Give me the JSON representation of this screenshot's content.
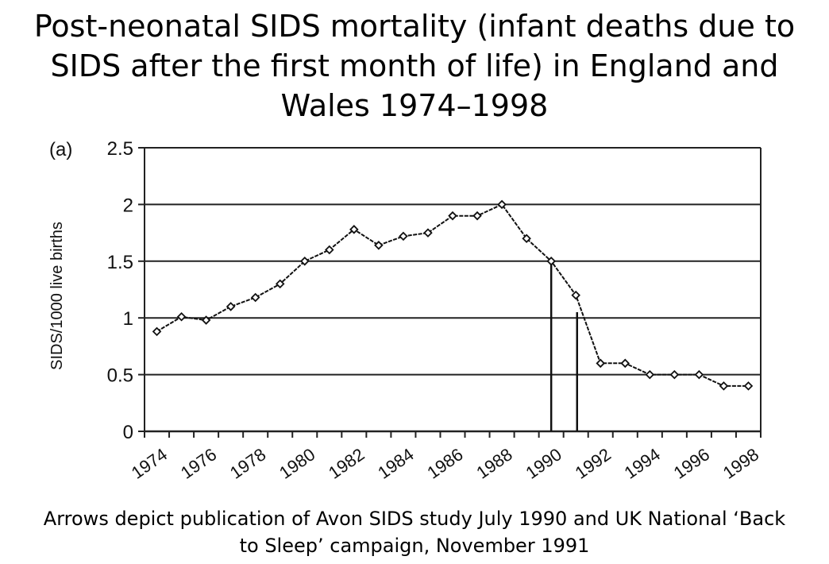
{
  "title_lines": [
    "Post-neonatal SIDS mortality (infant deaths due to",
    "SIDS after the first month of life) in England and",
    "Wales 1974–1998"
  ],
  "caption_lines": [
    "Arrows depict publication of Avon SIDS study July 1990 and UK National ‘Back",
    "to Sleep’ campaign, November 1991"
  ],
  "chart_data": {
    "type": "line",
    "title": "Post-neonatal SIDS mortality (infant deaths due to SIDS after the first month of life) in England and Wales 1974–1998",
    "panel_label": "(a)",
    "xlabel": "",
    "ylabel": "SIDS/1000 live births",
    "x": [
      1974.5,
      1975.5,
      1976.5,
      1977.5,
      1978.5,
      1979.5,
      1980.5,
      1981.5,
      1982.5,
      1983.5,
      1984.5,
      1985.5,
      1986.5,
      1987.5,
      1988.5,
      1989.5,
      1990.5,
      1991.5,
      1992.5,
      1993.5,
      1994.5,
      1995.5,
      1996.5,
      1997.5,
      1998.5
    ],
    "values": [
      0.88,
      1.01,
      0.98,
      1.1,
      1.18,
      1.3,
      1.5,
      1.6,
      1.78,
      1.64,
      1.72,
      1.75,
      1.9,
      1.9,
      2.0,
      1.7,
      1.5,
      1.2,
      0.6,
      0.6,
      0.5,
      0.5,
      0.5,
      0.4,
      0.4
    ],
    "xlim": [
      1974,
      1999
    ],
    "ylim": [
      0,
      2.5
    ],
    "yticks": [
      0,
      0.5,
      1,
      1.5,
      2,
      2.5
    ],
    "ytick_labels": [
      "0",
      "0.5",
      "1",
      "1.5",
      "2",
      "2.5"
    ],
    "xticks": [
      1974,
      1976,
      1978,
      1980,
      1982,
      1984,
      1986,
      1988,
      1990,
      1992,
      1994,
      1996,
      1998
    ],
    "xtick_labels": [
      "1974",
      "1976",
      "1978",
      "1980",
      "1982",
      "1984",
      "1986",
      "1988",
      "1990",
      "1992",
      "1994",
      "1996",
      "1998"
    ],
    "markers": [
      {
        "x": 1990.5,
        "y_top": 1.5
      },
      {
        "x": 1991.55,
        "y_top": 1.05
      }
    ],
    "grid": "horizontal",
    "line_color": "#111111"
  }
}
